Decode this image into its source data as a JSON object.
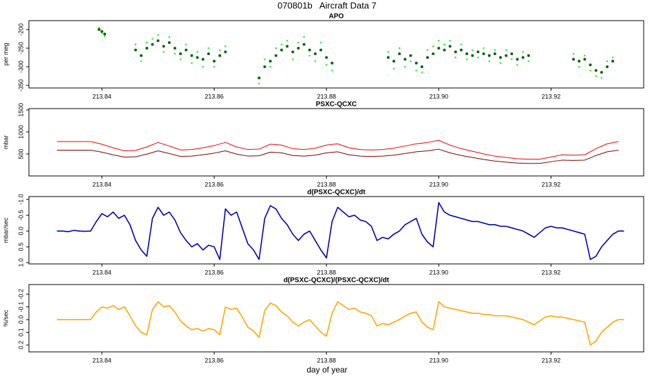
{
  "title": "070801b   Aircraft Data 7",
  "xlabel": "day of year",
  "chart_data": [
    {
      "type": "scatter",
      "title": "APO",
      "ylabel": "per meg",
      "xlim": [
        213.827,
        213.9365
      ],
      "xticks": [
        213.84,
        213.86,
        213.88,
        {
          "value": 213.9,
          "label": "213.90"
        },
        213.92
      ],
      "ylim": [
        -357,
        -176
      ],
      "yticks": [
        -350,
        -300,
        -250,
        -200
      ],
      "x": [
        213.8395,
        213.84,
        213.8405,
        213.846,
        213.847,
        213.848,
        213.849,
        213.85,
        213.851,
        213.852,
        213.853,
        213.854,
        213.855,
        213.856,
        213.857,
        213.858,
        213.859,
        213.86,
        213.861,
        213.862,
        213.868,
        213.869,
        213.87,
        213.871,
        213.872,
        213.873,
        213.874,
        213.875,
        213.876,
        213.877,
        213.878,
        213.879,
        213.88,
        213.881,
        213.891,
        213.892,
        213.893,
        213.894,
        213.895,
        213.896,
        213.897,
        213.898,
        213.899,
        213.9,
        213.901,
        213.902,
        213.903,
        213.904,
        213.905,
        213.906,
        213.907,
        213.908,
        213.909,
        213.91,
        213.911,
        213.912,
        213.913,
        213.914,
        213.915,
        213.916,
        213.924,
        213.925,
        213.926,
        213.927,
        213.928,
        213.929,
        213.93,
        213.931
      ],
      "series": [
        {
          "color": "#33ee33",
          "values": [
            -195,
            -210,
            -218,
            -240,
            -285,
            -235,
            -225,
            -215,
            -260,
            -220,
            -265,
            -280,
            -240,
            -290,
            -260,
            -300,
            -250,
            -300,
            -255,
            -245,
            -345,
            -280,
            -300,
            -250,
            -240,
            -230,
            -280,
            -235,
            -220,
            -270,
            -285,
            -235,
            -295,
            -310,
            -260,
            -305,
            -250,
            -300,
            -285,
            -310,
            -315,
            -255,
            -245,
            -230,
            -240,
            -230,
            -275,
            -240,
            -280,
            -255,
            -275,
            -250,
            -285,
            -255,
            -290,
            -255,
            -280,
            -295,
            -260,
            -285,
            -265,
            -300,
            -270,
            -310,
            -325,
            -330,
            -285,
            -275
          ]
        },
        {
          "color": "#006400",
          "values": [
            -200,
            -205,
            -212,
            -255,
            -270,
            -250,
            -240,
            -230,
            -245,
            -235,
            -250,
            -265,
            -255,
            -270,
            -275,
            -280,
            -265,
            -285,
            -270,
            -260,
            -330,
            -300,
            -285,
            -270,
            -255,
            -245,
            -260,
            -250,
            -240,
            -255,
            -265,
            -255,
            -275,
            -290,
            -275,
            -285,
            -265,
            -280,
            -270,
            -290,
            -300,
            -275,
            -265,
            -250,
            -255,
            -245,
            -260,
            -255,
            -265,
            -270,
            -260,
            -265,
            -270,
            -265,
            -275,
            -270,
            -265,
            -280,
            -275,
            -270,
            -280,
            -285,
            -280,
            -295,
            -310,
            -315,
            -300,
            -285
          ]
        }
      ]
    },
    {
      "type": "line",
      "title": "PSXC-QCXC",
      "ylabel": "mbar",
      "xlim": [
        213.827,
        213.9365
      ],
      "xticks": [
        213.84,
        213.86,
        213.88,
        {
          "value": 213.9,
          "label": "213.90"
        },
        213.92
      ],
      "ylim": [
        0,
        1530
      ],
      "yticks": [
        500,
        1000,
        1500
      ],
      "x": [
        213.832,
        213.834,
        213.836,
        213.838,
        213.84,
        213.842,
        213.844,
        213.846,
        213.848,
        213.85,
        213.852,
        213.854,
        213.856,
        213.858,
        213.86,
        213.862,
        213.864,
        213.866,
        213.868,
        213.87,
        213.872,
        213.874,
        213.876,
        213.878,
        213.88,
        213.882,
        213.884,
        213.886,
        213.888,
        213.89,
        213.892,
        213.894,
        213.896,
        213.898,
        213.9,
        213.902,
        213.904,
        213.906,
        213.908,
        213.91,
        213.912,
        213.914,
        213.916,
        213.918,
        213.92,
        213.922,
        213.924,
        213.926,
        213.928,
        213.93,
        213.932
      ],
      "series": [
        {
          "color": "#ee0000",
          "values": [
            780,
            780,
            780,
            780,
            720,
            640,
            570,
            580,
            660,
            760,
            680,
            590,
            600,
            640,
            690,
            760,
            660,
            600,
            610,
            720,
            700,
            620,
            600,
            630,
            700,
            730,
            640,
            600,
            590,
            600,
            630,
            680,
            730,
            760,
            810,
            700,
            620,
            560,
            500,
            450,
            420,
            390,
            380,
            380,
            430,
            480,
            470,
            480,
            620,
            730,
            780
          ]
        },
        {
          "color": "#7a0000",
          "values": [
            585,
            585,
            585,
            585,
            540,
            480,
            428,
            435,
            495,
            570,
            510,
            443,
            450,
            480,
            518,
            570,
            495,
            450,
            458,
            540,
            525,
            465,
            450,
            473,
            525,
            548,
            480,
            450,
            443,
            450,
            473,
            510,
            548,
            570,
            608,
            525,
            465,
            420,
            375,
            338,
            315,
            293,
            285,
            285,
            323,
            360,
            353,
            360,
            465,
            548,
            585
          ]
        }
      ]
    },
    {
      "type": "line",
      "title": "d(PSXC-QCXC)/dt",
      "ylabel": "mbar/sec",
      "xlim": [
        213.827,
        213.9365
      ],
      "xticks": [
        213.84,
        213.86,
        213.88,
        {
          "value": 213.9,
          "label": "213.90"
        },
        213.92
      ],
      "ylim": [
        -1.09,
        1.04
      ],
      "y_inverted": true,
      "yticks": [
        {
          "value": -1,
          "label": "-1.0"
        },
        -0.5,
        {
          "value": 0,
          "label": "0.0"
        },
        0.5,
        {
          "value": 1,
          "label": "1.0"
        }
      ],
      "x": [
        213.832,
        213.833,
        213.834,
        213.835,
        213.836,
        213.837,
        213.838,
        213.839,
        213.84,
        213.841,
        213.842,
        213.843,
        213.844,
        213.845,
        213.846,
        213.847,
        213.848,
        213.849,
        213.85,
        213.851,
        213.852,
        213.853,
        213.854,
        213.855,
        213.856,
        213.857,
        213.858,
        213.859,
        213.86,
        213.861,
        213.862,
        213.863,
        213.864,
        213.865,
        213.866,
        213.867,
        213.868,
        213.869,
        213.87,
        213.871,
        213.872,
        213.873,
        213.874,
        213.875,
        213.876,
        213.877,
        213.878,
        213.879,
        213.88,
        213.881,
        213.882,
        213.883,
        213.884,
        213.885,
        213.886,
        213.887,
        213.888,
        213.889,
        213.89,
        213.891,
        213.892,
        213.893,
        213.894,
        213.895,
        213.896,
        213.897,
        213.898,
        213.899,
        213.9,
        213.901,
        213.902,
        213.903,
        213.904,
        213.905,
        213.906,
        213.907,
        213.908,
        213.909,
        213.91,
        213.911,
        213.912,
        213.913,
        213.914,
        213.915,
        213.916,
        213.917,
        213.918,
        213.919,
        213.92,
        213.921,
        213.922,
        213.923,
        213.924,
        213.925,
        213.926,
        213.927,
        213.928,
        213.929,
        213.93,
        213.931,
        213.932,
        213.933
      ],
      "series": [
        {
          "color": "#0000b0",
          "values": [
            0,
            0,
            0.02,
            -0.02,
            0,
            0.01,
            0,
            -0.3,
            -0.55,
            -0.45,
            -0.6,
            -0.4,
            -0.5,
            -0.2,
            0.3,
            0.6,
            0.8,
            -0.4,
            -0.75,
            -0.5,
            -0.6,
            -0.35,
            0.05,
            0.3,
            0.5,
            0.4,
            0.6,
            0.45,
            0.5,
            0.9,
            -0.7,
            -0.5,
            -0.6,
            -0.1,
            0.4,
            0.6,
            0.9,
            -0.4,
            -0.8,
            -0.7,
            -0.4,
            -0.2,
            0.1,
            0.3,
            0.1,
            0,
            0.3,
            0.6,
            0.85,
            -0.3,
            -0.75,
            -0.6,
            -0.45,
            -0.5,
            -0.35,
            -0.3,
            -0.15,
            0.3,
            0.2,
            0.25,
            0.1,
            0,
            -0.2,
            -0.3,
            -0.4,
            0.1,
            0.35,
            0.5,
            -0.9,
            -0.6,
            -0.5,
            -0.45,
            -0.4,
            -0.35,
            -0.3,
            -0.3,
            -0.25,
            -0.2,
            -0.2,
            -0.15,
            -0.15,
            -0.1,
            -0.05,
            0,
            0.1,
            0.2,
            0.05,
            -0.1,
            -0.15,
            -0.1,
            -0.1,
            -0.05,
            0,
            0.05,
            0.1,
            0.9,
            0.8,
            0.5,
            0.3,
            0.1,
            0,
            0
          ]
        }
      ]
    },
    {
      "type": "line",
      "title": "d(PSXC-QCXC)/(PSXC-QCXC)/dt",
      "ylabel": "%/sec",
      "xlim": [
        213.827,
        213.9365
      ],
      "xticks": [
        213.84,
        213.86,
        213.88,
        {
          "value": 213.9,
          "label": "213.90"
        },
        213.92
      ],
      "ylim": [
        -0.276,
        0.254
      ],
      "y_inverted": true,
      "yticks": [
        -0.2,
        -0.1,
        {
          "value": 0,
          "label": "0.0"
        },
        0.1,
        0.2
      ],
      "x": [
        213.832,
        213.833,
        213.834,
        213.835,
        213.836,
        213.837,
        213.838,
        213.839,
        213.84,
        213.841,
        213.842,
        213.843,
        213.844,
        213.845,
        213.846,
        213.847,
        213.848,
        213.849,
        213.85,
        213.851,
        213.852,
        213.853,
        213.854,
        213.855,
        213.856,
        213.857,
        213.858,
        213.859,
        213.86,
        213.861,
        213.862,
        213.863,
        213.864,
        213.865,
        213.866,
        213.867,
        213.868,
        213.869,
        213.87,
        213.871,
        213.872,
        213.873,
        213.874,
        213.875,
        213.876,
        213.877,
        213.878,
        213.879,
        213.88,
        213.881,
        213.882,
        213.883,
        213.884,
        213.885,
        213.886,
        213.887,
        213.888,
        213.889,
        213.89,
        213.891,
        213.892,
        213.893,
        213.894,
        213.895,
        213.896,
        213.897,
        213.898,
        213.899,
        213.9,
        213.901,
        213.902,
        213.903,
        213.904,
        213.905,
        213.906,
        213.907,
        213.908,
        213.909,
        213.91,
        213.911,
        213.912,
        213.913,
        213.914,
        213.915,
        213.916,
        213.917,
        213.918,
        213.919,
        213.92,
        213.921,
        213.922,
        213.923,
        213.924,
        213.925,
        213.926,
        213.927,
        213.928,
        213.929,
        213.93,
        213.931,
        213.932,
        213.933
      ],
      "series": [
        {
          "color": "#ffa500",
          "values": [
            0,
            0,
            0,
            0,
            0,
            0,
            0,
            -0.06,
            -0.1,
            -0.09,
            -0.11,
            -0.08,
            -0.1,
            -0.03,
            0.05,
            0.1,
            0.12,
            -0.08,
            -0.14,
            -0.1,
            -0.11,
            -0.06,
            0.01,
            0.05,
            0.08,
            0.07,
            0.09,
            0.07,
            0.08,
            0.12,
            -0.1,
            -0.08,
            -0.09,
            -0.02,
            0.06,
            0.09,
            0.14,
            -0.07,
            -0.13,
            -0.11,
            -0.06,
            -0.03,
            0.02,
            0.05,
            0.02,
            0,
            0.05,
            0.1,
            0.13,
            -0.05,
            -0.14,
            -0.11,
            -0.08,
            -0.09,
            -0.06,
            -0.05,
            -0.03,
            0.05,
            0.03,
            0.04,
            0.02,
            0,
            -0.03,
            -0.05,
            -0.06,
            0.02,
            0.06,
            0.08,
            -0.14,
            -0.1,
            -0.09,
            -0.08,
            -0.07,
            -0.06,
            -0.05,
            -0.05,
            -0.04,
            -0.04,
            -0.03,
            -0.03,
            -0.03,
            -0.02,
            -0.01,
            0,
            0.02,
            0.04,
            0.01,
            -0.02,
            -0.03,
            -0.02,
            -0.02,
            -0.01,
            0,
            0.01,
            0.02,
            0.2,
            0.17,
            0.1,
            0.06,
            0.02,
            0,
            0
          ]
        }
      ]
    }
  ]
}
